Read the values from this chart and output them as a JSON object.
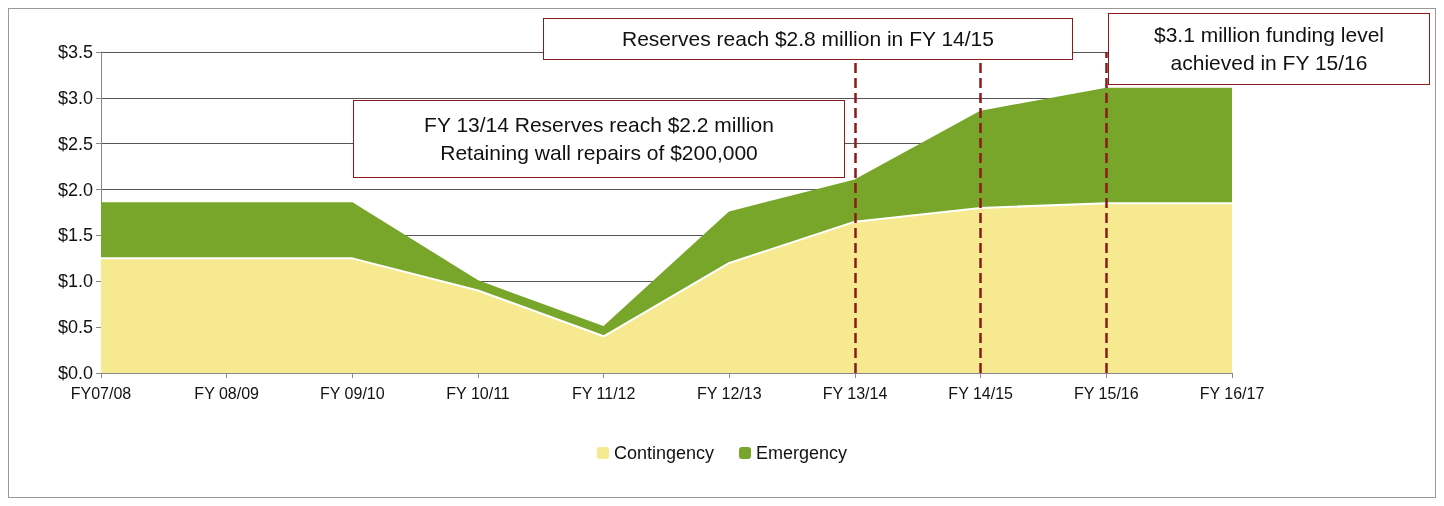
{
  "chart_data": {
    "type": "area",
    "stacked": true,
    "categories": [
      "FY07/08",
      "FY 08/09",
      "FY 09/10",
      "FY 10/11",
      "FY 11/12",
      "FY 12/13",
      "FY 13/14",
      "FY 14/15",
      "FY 15/16",
      "FY 16/17"
    ],
    "series": [
      {
        "name": "Contingency",
        "color": "#f6e98f",
        "values": [
          1.25,
          1.25,
          1.25,
          0.9,
          0.4,
          1.2,
          1.65,
          1.8,
          1.85,
          1.85
        ]
      },
      {
        "name": "Emergency",
        "color": "#78a62a",
        "values": [
          0.6,
          0.6,
          0.6,
          0.1,
          0.1,
          0.55,
          0.45,
          1.05,
          1.25,
          1.25
        ]
      }
    ],
    "ylim": [
      0,
      3.5
    ],
    "yticks": [
      {
        "value": 0,
        "label": "$0.0"
      },
      {
        "value": 0.5,
        "label": "$0.5"
      },
      {
        "value": 1,
        "label": "$1.0"
      },
      {
        "value": 1.5,
        "label": "$1.5"
      },
      {
        "value": 2,
        "label": "$2.0"
      },
      {
        "value": 2.5,
        "label": "$2.5"
      },
      {
        "value": 3,
        "label": "$3.0"
      },
      {
        "value": 3.5,
        "label": "$3.5"
      }
    ],
    "grid": "y",
    "legend": "bottom",
    "ref_lines": [
      {
        "axis": "x",
        "value": "FY 13/14",
        "color": "#8b1a1a",
        "line_style": "dashed"
      },
      {
        "axis": "x",
        "value": "FY 14/15",
        "color": "#8b1a1a",
        "line_style": "dashed"
      },
      {
        "axis": "x",
        "value": "FY 15/16",
        "color": "#8b1a1a",
        "line_style": "dashed"
      }
    ],
    "annotations": [
      "Reserves reach $2.8 million in FY 14/15",
      "FY 13/14 Reserves reach $2.2 million\nRetaining wall repairs of $200,000",
      "$3.1 million funding level\nachieved in FY 15/16"
    ]
  }
}
